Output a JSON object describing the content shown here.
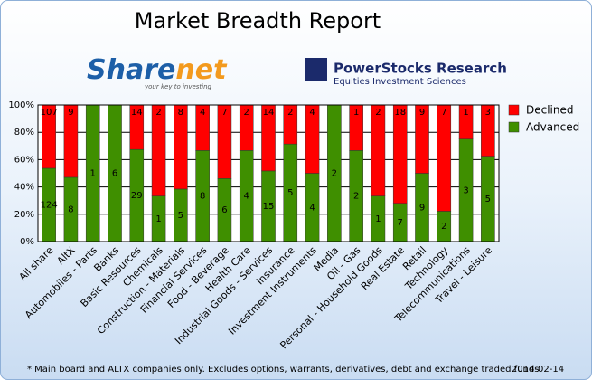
{
  "chart_data": {
    "type": "bar",
    "stacking": "percent",
    "title": "Market Breadth Report",
    "logos": {
      "sharenet": {
        "parts": [
          "Share",
          "net"
        ],
        "tagline": "your key to investing"
      },
      "powerstocks": {
        "name": "PowerStocks  Research",
        "tagline": "Equities Investment Sciences"
      }
    },
    "categories": [
      "All share",
      "AltX",
      "Automobiles - Parts",
      "Banks",
      "Basic Resources",
      "Chemicals",
      "Construction - Materials",
      "Financial Services",
      "Food - Beverage",
      "Health Care",
      "Industrial Goods - Services",
      "Insurance",
      "Investment Instruments",
      "Media",
      "Oil - Gas",
      "Personal - Household Goods",
      "Real Estate",
      "Retail",
      "Technology",
      "Telecommunications",
      "Travel - Leisure"
    ],
    "series": [
      {
        "name": "Advanced",
        "color": "#3f8f00",
        "values": [
          124,
          8,
          1,
          6,
          29,
          1,
          5,
          8,
          6,
          4,
          15,
          5,
          4,
          2,
          2,
          1,
          7,
          9,
          2,
          3,
          5
        ]
      },
      {
        "name": "Declined",
        "color": "#ff0000",
        "values": [
          107,
          9,
          0,
          0,
          14,
          2,
          8,
          4,
          7,
          2,
          14,
          2,
          4,
          0,
          1,
          2,
          18,
          9,
          7,
          1,
          3
        ]
      }
    ],
    "ylim": [
      0,
      100
    ],
    "yticks": [
      {
        "value": 0,
        "label": "0%"
      },
      {
        "value": 20,
        "label": "20%"
      },
      {
        "value": 40,
        "label": "40%"
      },
      {
        "value": 60,
        "label": "60%"
      },
      {
        "value": 80,
        "label": "80%"
      },
      {
        "value": 100,
        "label": "100%"
      }
    ],
    "grid": true,
    "legend": "right",
    "footnote": "* Main board and ALTX companies only. Excludes options, warrants, derivatives, debt and exchange traded funds",
    "date": "2014-02-14"
  }
}
